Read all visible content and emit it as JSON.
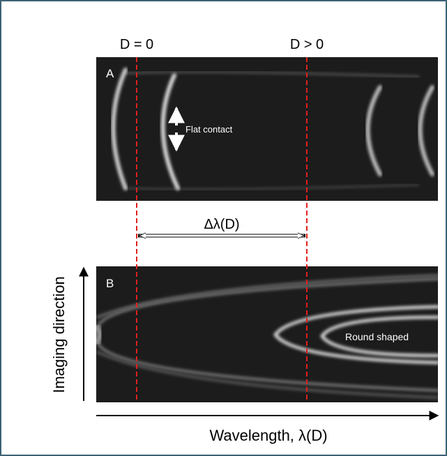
{
  "labels": {
    "d_zero": "D = 0",
    "d_positive": "D > 0",
    "panel_a": "A",
    "flat_contact": "Flat contact",
    "delta": "Δλ(D)",
    "panel_b": "B",
    "round_shaped": "Round shaped",
    "y_axis": "Imaging direction",
    "x_axis": "Wavelength, λ(D)"
  }
}
